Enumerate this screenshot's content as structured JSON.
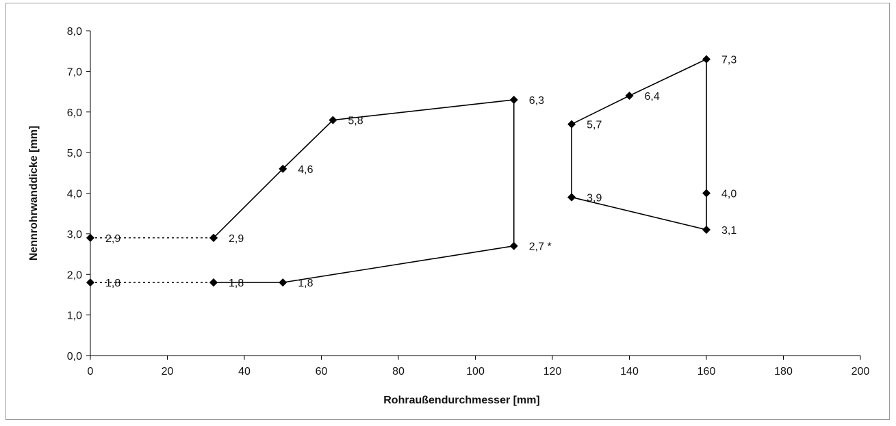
{
  "chart_data": {
    "type": "line",
    "title": "",
    "xlabel": "Rohraußendurchmesser [mm]",
    "ylabel": "Nennrohrwanddicke [mm]",
    "xlim": [
      0,
      200
    ],
    "ylim": [
      0,
      8
    ],
    "xticks": [
      {
        "value": 0,
        "label": "0"
      },
      {
        "value": 20,
        "label": "20"
      },
      {
        "value": 40,
        "label": "40"
      },
      {
        "value": 60,
        "label": "60"
      },
      {
        "value": 80,
        "label": "80"
      },
      {
        "value": 100,
        "label": "100"
      },
      {
        "value": 120,
        "label": "120"
      },
      {
        "value": 140,
        "label": "140"
      },
      {
        "value": 160,
        "label": "160"
      },
      {
        "value": 180,
        "label": "180"
      },
      {
        "value": 200,
        "label": "200"
      }
    ],
    "yticks": [
      {
        "value": 0,
        "label": "0,0"
      },
      {
        "value": 1,
        "label": "1,0"
      },
      {
        "value": 2,
        "label": "2,0"
      },
      {
        "value": 3,
        "label": "3,0"
      },
      {
        "value": 4,
        "label": "4,0"
      },
      {
        "value": 5,
        "label": "5,0"
      },
      {
        "value": 6,
        "label": "6,0"
      },
      {
        "value": 7,
        "label": "7,0"
      },
      {
        "value": 8,
        "label": "8,0"
      }
    ],
    "grid": false,
    "legend": "none",
    "line_color": "#000000",
    "marker": "diamond",
    "series": [
      {
        "line": "dotted",
        "points": [
          {
            "x": 0,
            "y": 2.9,
            "label": "2,9"
          },
          {
            "x": 32,
            "y": 2.9
          }
        ]
      },
      {
        "line": "dotted",
        "points": [
          {
            "x": 0,
            "y": 1.8,
            "label": "1,8"
          },
          {
            "x": 32,
            "y": 1.8
          }
        ]
      },
      {
        "line": "solid",
        "points": [
          {
            "x": 32,
            "y": 2.9,
            "label": "2,9"
          },
          {
            "x": 50,
            "y": 4.6,
            "label": "4,6"
          },
          {
            "x": 63,
            "y": 5.8,
            "label": "5,8"
          },
          {
            "x": 110,
            "y": 6.3,
            "label": "6,3"
          },
          {
            "x": 110,
            "y": 2.7,
            "label": "2,7 *"
          },
          {
            "x": 50,
            "y": 1.8,
            "label": "1,8"
          },
          {
            "x": 32,
            "y": 1.8,
            "label": "1,8"
          }
        ]
      },
      {
        "line": "solid",
        "points": [
          {
            "x": 125,
            "y": 3.9,
            "label": "3,9"
          },
          {
            "x": 125,
            "y": 5.7,
            "label": "5,7"
          },
          {
            "x": 140,
            "y": 6.4,
            "label": "6,4"
          },
          {
            "x": 160,
            "y": 7.3,
            "label": "7,3"
          },
          {
            "x": 160,
            "y": 4.0,
            "label": "4,0"
          },
          {
            "x": 160,
            "y": 3.1,
            "label": "3,1"
          },
          {
            "x": 125,
            "y": 3.9
          }
        ]
      }
    ]
  }
}
